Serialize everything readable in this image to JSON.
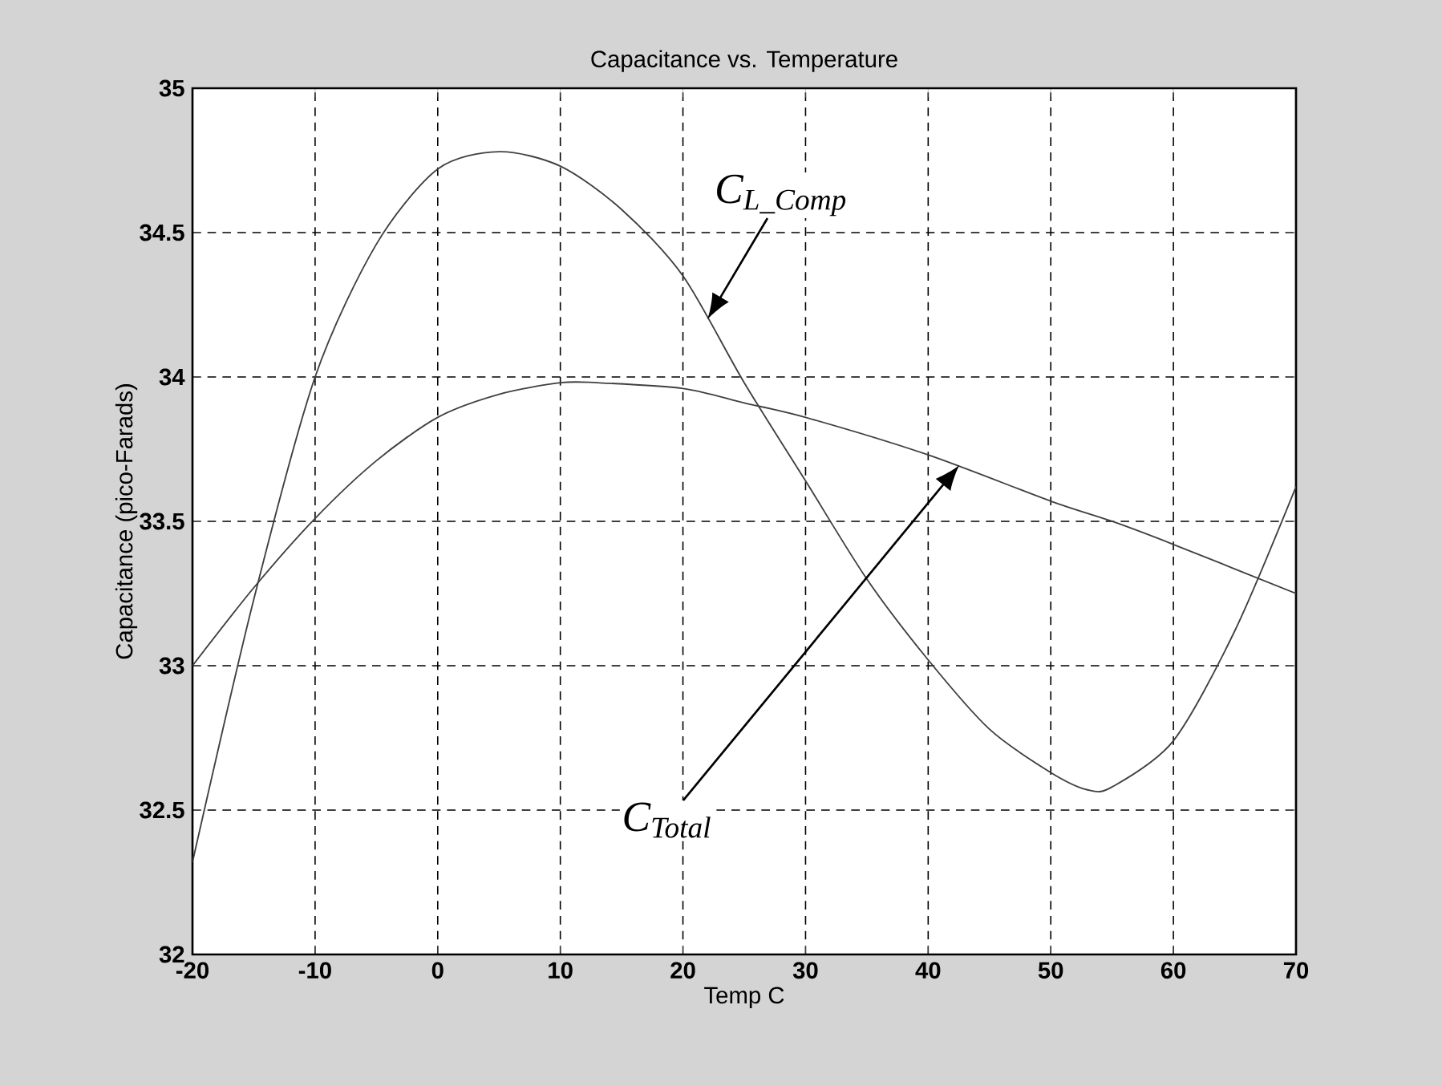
{
  "chart_data": {
    "type": "line",
    "title": "Capacitance vs. Temperature",
    "xlabel": "Temp C",
    "ylabel": "Capacitance (pico-Farads)",
    "xlim": [
      -20,
      70
    ],
    "xticks": [
      -20,
      -10,
      0,
      10,
      20,
      30,
      40,
      50,
      60,
      70
    ],
    "ylim": [
      32,
      35
    ],
    "yticks": [
      32,
      32.5,
      33,
      33.5,
      34,
      34.5,
      35
    ],
    "grid": true,
    "line_style": "solid",
    "marker": "none",
    "series": [
      {
        "color": "#404040",
        "x": [
          -20,
          -15,
          -10,
          -5,
          0,
          5,
          10,
          15,
          20,
          25,
          30,
          35,
          40,
          45,
          50,
          53,
          55,
          60,
          65,
          70
        ],
        "values": [
          32.32,
          33.23,
          34.0,
          34.46,
          34.72,
          34.78,
          34.73,
          34.58,
          34.35,
          33.98,
          33.64,
          33.3,
          33.02,
          32.78,
          32.63,
          32.57,
          32.58,
          32.74,
          33.12,
          33.62
        ]
      },
      {
        "color": "#404040",
        "x": [
          -20,
          -15,
          -10,
          -5,
          0,
          5,
          10,
          13,
          20,
          25,
          30,
          40,
          50,
          55,
          60,
          70
        ],
        "values": [
          33.0,
          33.27,
          33.51,
          33.71,
          33.86,
          33.94,
          33.98,
          33.98,
          33.96,
          33.91,
          33.86,
          33.73,
          33.57,
          33.5,
          33.42,
          33.25
        ]
      }
    ],
    "annotations": [
      {
        "text": "C$_{L_Comp}$",
        "x": 22,
        "y": 34.2
      },
      "C$_{Total}$"
    ]
  }
}
